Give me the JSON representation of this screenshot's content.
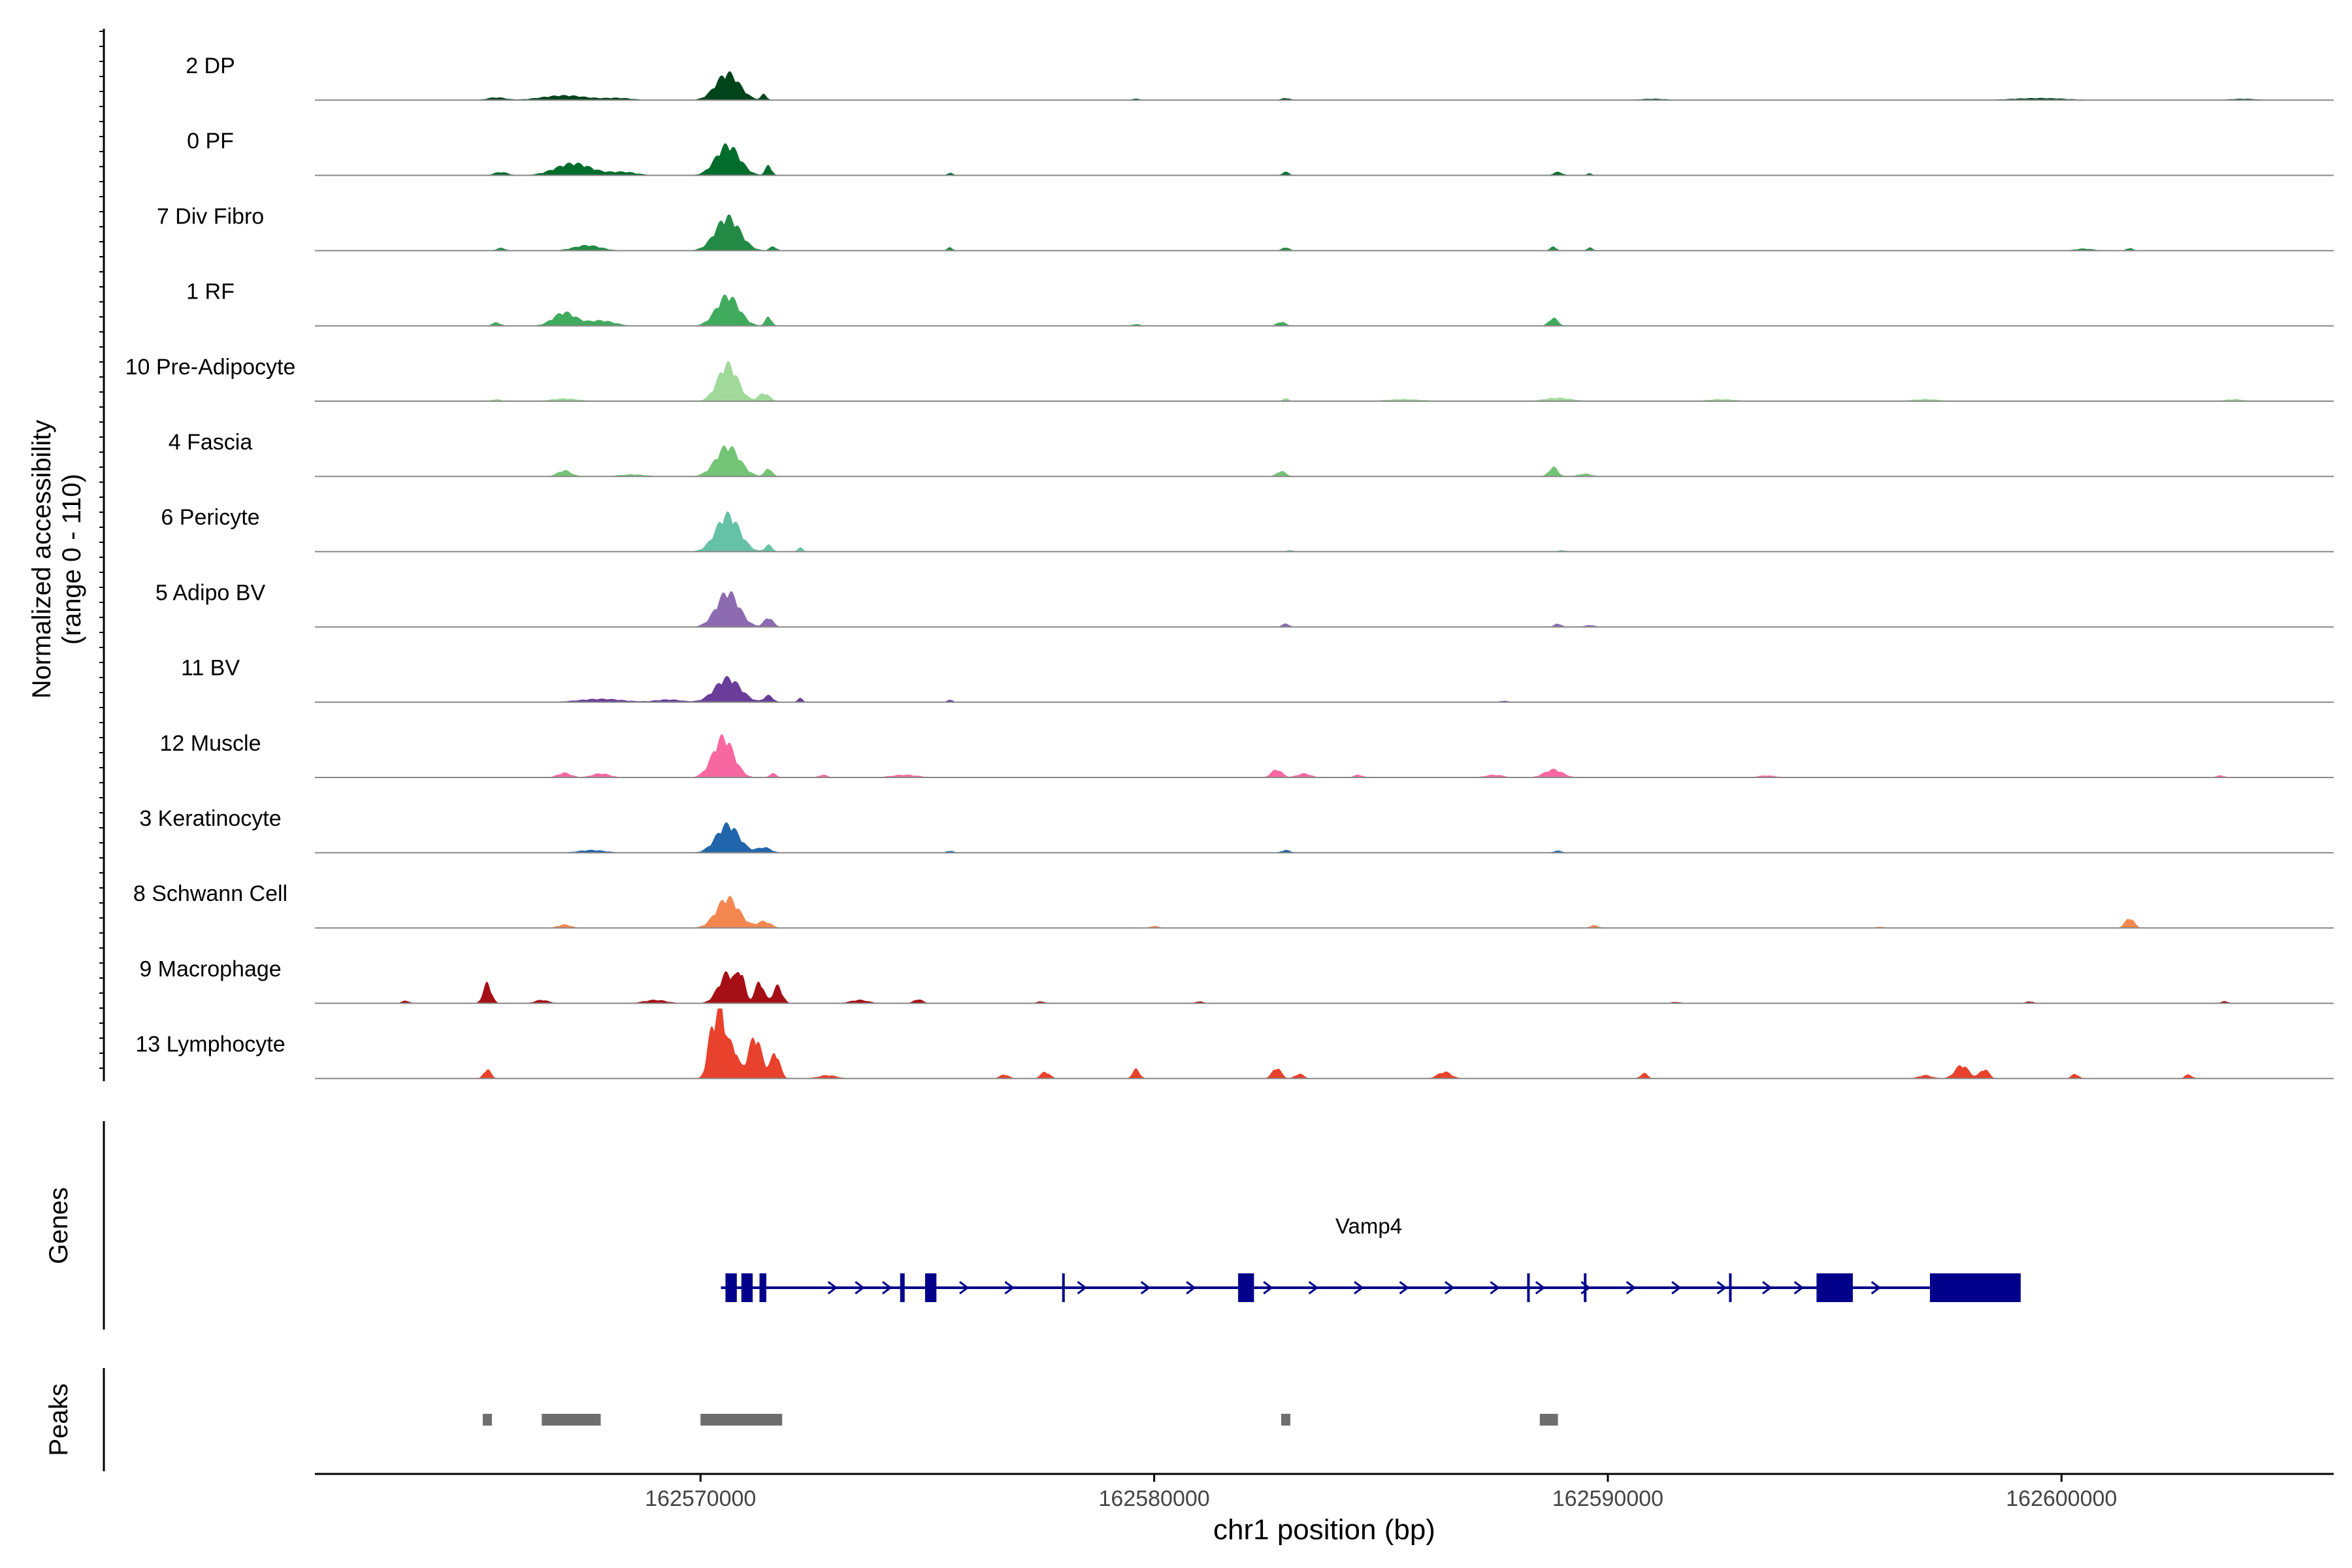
{
  "chart_data": {
    "type": "area",
    "title": "",
    "chromosome": "chr1",
    "xlabel": "chr1 position (bp)",
    "ylabel_line1": "Normalized accessibility",
    "ylabel_line2": "(range 0 - 110)",
    "y_range": [
      0,
      110
    ],
    "x_range": [
      162561500,
      162606000
    ],
    "x_ticks": [
      162570000,
      162580000,
      162590000,
      162600000
    ],
    "x_tick_labels": [
      "162570000",
      "162580000",
      "162590000",
      "162600000"
    ],
    "tracks": [
      {
        "name": "2 DP",
        "color": "#00441b",
        "peaks": [
          [
            162565500,
            4,
            200
          ],
          [
            162567000,
            7,
            500
          ],
          [
            162570600,
            40,
            260
          ],
          [
            162571400,
            9,
            60
          ],
          [
            162568200,
            3,
            300
          ],
          [
            162579600,
            2,
            100
          ],
          [
            162582900,
            3,
            100
          ],
          [
            162591000,
            2,
            300
          ],
          [
            162599500,
            3,
            600
          ],
          [
            162604000,
            2,
            300
          ]
        ]
      },
      {
        "name": "0 PF",
        "color": "#006d2c",
        "peaks": [
          [
            162565600,
            5,
            150
          ],
          [
            162567200,
            18,
            400
          ],
          [
            162568300,
            5,
            300
          ],
          [
            162570600,
            45,
            260
          ],
          [
            162571500,
            15,
            70
          ],
          [
            162575500,
            4,
            60
          ],
          [
            162582900,
            5,
            80
          ],
          [
            162588900,
            5,
            100
          ],
          [
            162589600,
            3,
            60
          ]
        ]
      },
      {
        "name": "7 Div Fibro",
        "color": "#238b45",
        "peaks": [
          [
            162565600,
            4,
            100
          ],
          [
            162567500,
            8,
            300
          ],
          [
            162570600,
            50,
            270
          ],
          [
            162571600,
            6,
            80
          ],
          [
            162575500,
            5,
            60
          ],
          [
            162582900,
            5,
            80
          ],
          [
            162588800,
            6,
            70
          ],
          [
            162589600,
            5,
            60
          ],
          [
            162600500,
            3,
            200
          ],
          [
            162601500,
            4,
            70
          ]
        ]
      },
      {
        "name": "1 RF",
        "color": "#41ab5d",
        "peaks": [
          [
            162565500,
            5,
            100
          ],
          [
            162567000,
            20,
            250
          ],
          [
            162567800,
            8,
            300
          ],
          [
            162570600,
            45,
            250
          ],
          [
            162571500,
            14,
            70
          ],
          [
            162582800,
            6,
            100
          ],
          [
            162588800,
            12,
            100
          ],
          [
            162579600,
            3,
            80
          ]
        ]
      },
      {
        "name": "10 Pre-Adipocyte",
        "color": "#a1d99b",
        "peaks": [
          [
            162565500,
            3,
            100
          ],
          [
            162567000,
            4,
            300
          ],
          [
            162570600,
            55,
            220
          ],
          [
            162571400,
            12,
            120
          ],
          [
            162582900,
            5,
            60
          ],
          [
            162585500,
            3,
            400
          ],
          [
            162588900,
            5,
            300
          ],
          [
            162592500,
            3,
            300
          ],
          [
            162597000,
            3,
            300
          ],
          [
            162603800,
            3,
            200
          ]
        ]
      },
      {
        "name": "4 Fascia",
        "color": "#74c476",
        "peaks": [
          [
            162567000,
            9,
            150
          ],
          [
            162568500,
            3,
            300
          ],
          [
            162570600,
            45,
            260
          ],
          [
            162571500,
            12,
            80
          ],
          [
            162582800,
            8,
            100
          ],
          [
            162588800,
            14,
            100
          ],
          [
            162589500,
            4,
            150
          ]
        ]
      },
      {
        "name": "6 Pericyte",
        "color": "#66c2a4",
        "peaks": [
          [
            162570600,
            55,
            260
          ],
          [
            162571500,
            10,
            80
          ],
          [
            162572200,
            6,
            60
          ],
          [
            162583000,
            2,
            100
          ],
          [
            162589000,
            2,
            100
          ]
        ]
      },
      {
        "name": "5 Adipo BV",
        "color": "#8c6bb1",
        "peaks": [
          [
            162570600,
            52,
            250
          ],
          [
            162571500,
            14,
            100
          ],
          [
            162582900,
            5,
            80
          ],
          [
            162588900,
            5,
            80
          ],
          [
            162589600,
            3,
            100
          ]
        ]
      },
      {
        "name": "11 BV",
        "color": "#6a3d9a",
        "peaks": [
          [
            162567800,
            5,
            500
          ],
          [
            162569300,
            4,
            300
          ],
          [
            162570600,
            36,
            280
          ],
          [
            162571500,
            10,
            100
          ],
          [
            162572200,
            6,
            60
          ],
          [
            162575500,
            4,
            60
          ],
          [
            162587700,
            2,
            100
          ]
        ]
      },
      {
        "name": "12 Muscle",
        "color": "#f768a1",
        "peaks": [
          [
            162567000,
            7,
            150
          ],
          [
            162567800,
            6,
            200
          ],
          [
            162570500,
            60,
            230
          ],
          [
            162571600,
            6,
            80
          ],
          [
            162572700,
            4,
            100
          ],
          [
            162574500,
            4,
            300
          ],
          [
            162582700,
            12,
            120
          ],
          [
            162583300,
            6,
            150
          ],
          [
            162584500,
            4,
            100
          ],
          [
            162587500,
            4,
            200
          ],
          [
            162588800,
            12,
            200
          ],
          [
            162593500,
            3,
            200
          ],
          [
            162603500,
            3,
            100
          ]
        ]
      },
      {
        "name": "3 Keratinocyte",
        "color": "#2166ac",
        "peaks": [
          [
            162567600,
            4,
            300
          ],
          [
            162570600,
            42,
            250
          ],
          [
            162571400,
            8,
            150
          ],
          [
            162575500,
            3,
            80
          ],
          [
            162582900,
            4,
            100
          ],
          [
            162588900,
            3,
            100
          ]
        ]
      },
      {
        "name": "8 Schwann Cell",
        "color": "#f4874f",
        "peaks": [
          [
            162567000,
            5,
            150
          ],
          [
            162570600,
            45,
            250
          ],
          [
            162571400,
            10,
            150
          ],
          [
            162580000,
            3,
            100
          ],
          [
            162589700,
            4,
            100
          ],
          [
            162601500,
            15,
            100
          ],
          [
            162596000,
            2,
            100
          ]
        ]
      },
      {
        "name": "9 Macrophage",
        "color": "#a50f15",
        "peaks": [
          [
            162563500,
            4,
            80
          ],
          [
            162565300,
            30,
            90
          ],
          [
            162566500,
            5,
            150
          ],
          [
            162569000,
            5,
            250
          ],
          [
            162570600,
            45,
            200
          ],
          [
            162570900,
            34,
            80
          ],
          [
            162571300,
            32,
            100
          ],
          [
            162571700,
            26,
            100
          ],
          [
            162573500,
            5,
            200
          ],
          [
            162574800,
            6,
            100
          ],
          [
            162577500,
            3,
            80
          ],
          [
            162581000,
            3,
            80
          ],
          [
            162591500,
            2,
            100
          ],
          [
            162599300,
            3,
            80
          ],
          [
            162603600,
            3,
            80
          ]
        ]
      },
      {
        "name": "13 Lymphocyte",
        "color": "#e8412c",
        "peaks": [
          [
            162565300,
            14,
            80
          ],
          [
            162570250,
            70,
            100
          ],
          [
            162570450,
            96,
            90
          ],
          [
            162570700,
            50,
            120
          ],
          [
            162571200,
            62,
            150
          ],
          [
            162571650,
            38,
            100
          ],
          [
            162572800,
            5,
            200
          ],
          [
            162576700,
            6,
            100
          ],
          [
            162577600,
            10,
            100
          ],
          [
            162579600,
            14,
            80
          ],
          [
            162582700,
            16,
            100
          ],
          [
            162583200,
            7,
            100
          ],
          [
            162586400,
            10,
            150
          ],
          [
            162590800,
            8,
            80
          ],
          [
            162597000,
            5,
            150
          ],
          [
            162597800,
            20,
            150
          ],
          [
            162598300,
            14,
            100
          ],
          [
            162600300,
            7,
            80
          ],
          [
            162602800,
            6,
            80
          ]
        ]
      }
    ],
    "genes": {
      "label": "Genes",
      "name": "Vamp4",
      "color": "#00008b",
      "start": 162570450,
      "end": 162599100,
      "strand": "+",
      "exons": [
        [
          162570550,
          162570800
        ],
        [
          162570900,
          162571150
        ],
        [
          162571300,
          162571450
        ],
        [
          162574400,
          162574500
        ],
        [
          162574950,
          162575200
        ],
        [
          162581850,
          162582200
        ],
        [
          162594600,
          162595400
        ],
        [
          162597100,
          162599100
        ]
      ],
      "ticks": [
        162578000,
        162588250,
        162589500,
        162592700
      ],
      "arrows": [
        162570650,
        162572900,
        162573500,
        162574100,
        162575800,
        162576800,
        162578400,
        162579800,
        162580800,
        162582500,
        162583500,
        162584500,
        162585500,
        162586500,
        162587500,
        162588500,
        162589500,
        162590500,
        162591500,
        162592500,
        162593500,
        162594200,
        162595900
      ]
    },
    "peaks": {
      "label": "Peaks",
      "color": "#6e6e6e",
      "regions": [
        [
          162565200,
          162565400
        ],
        [
          162566500,
          162567800
        ],
        [
          162570000,
          162571800
        ],
        [
          162582800,
          162583000
        ],
        [
          162588500,
          162588900
        ]
      ]
    }
  }
}
